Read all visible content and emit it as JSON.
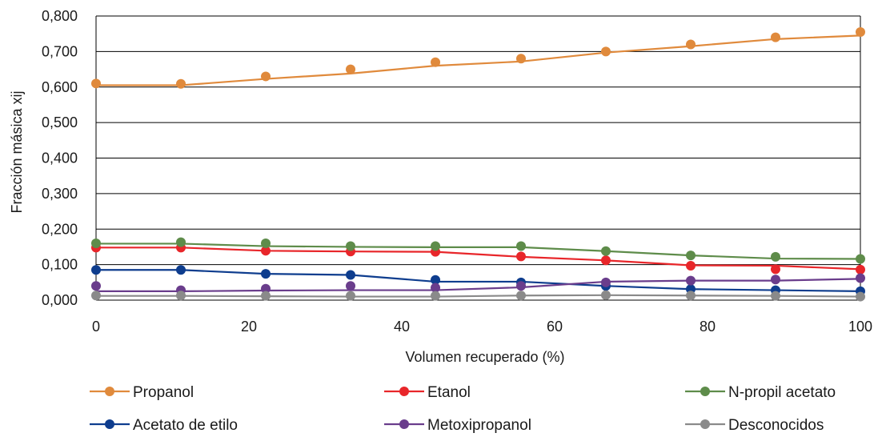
{
  "chart_data": {
    "type": "line",
    "title": "",
    "xlabel": "Volumen recuperado (%)",
    "ylabel": "Fracción másica xij",
    "xlim": [
      0,
      100
    ],
    "ylim": [
      0,
      0.8
    ],
    "grid": "horizontal",
    "legend_position": "bottom",
    "x_ticks": [
      {
        "value": 0,
        "label": "0"
      },
      {
        "value": 20,
        "label": "20"
      },
      {
        "value": 40,
        "label": "40"
      },
      {
        "value": 60,
        "label": "60"
      },
      {
        "value": 80,
        "label": "80"
      },
      {
        "value": 100,
        "label": "100"
      }
    ],
    "y_ticks": [
      {
        "value": 0,
        "label": "0,000"
      },
      {
        "value": 0.1,
        "label": "0,100"
      },
      {
        "value": 0.2,
        "label": "0,200"
      },
      {
        "value": 0.3,
        "label": "0,300"
      },
      {
        "value": 0.4,
        "label": "0,400"
      },
      {
        "value": 0.5,
        "label": "0,500"
      },
      {
        "value": 0.6,
        "label": "0,600"
      },
      {
        "value": 0.7,
        "label": "0,700"
      },
      {
        "value": 0.8,
        "label": "0,800"
      }
    ],
    "x": [
      0,
      11.1,
      22.2,
      33.3,
      44.4,
      55.6,
      66.7,
      77.8,
      88.9,
      100
    ],
    "series": [
      {
        "name": "Propanol",
        "color": "#e08a3c",
        "line_values": [
          0.605,
          0.605,
          0.623,
          0.638,
          0.66,
          0.672,
          0.697,
          0.715,
          0.735,
          0.745
        ],
        "values": [
          0.61,
          0.609,
          0.63,
          0.65,
          0.67,
          0.68,
          0.7,
          0.72,
          0.74,
          0.755
        ]
      },
      {
        "name": "Etanol",
        "color": "#e8262a",
        "line_values": [
          0.148,
          0.148,
          0.139,
          0.137,
          0.136,
          0.122,
          0.112,
          0.098,
          0.097,
          0.087
        ],
        "values": [
          0.148,
          0.148,
          0.139,
          0.137,
          0.136,
          0.123,
          0.112,
          0.097,
          0.087,
          0.086
        ]
      },
      {
        "name": "N-propil acetato",
        "color": "#5e8c4a",
        "line_values": [
          0.159,
          0.159,
          0.152,
          0.15,
          0.149,
          0.149,
          0.138,
          0.126,
          0.117,
          0.116
        ],
        "values": [
          0.16,
          0.163,
          0.16,
          0.152,
          0.152,
          0.152,
          0.138,
          0.126,
          0.122,
          0.116
        ]
      },
      {
        "name": "Acetato de etilo",
        "color": "#0e3d8e",
        "line_values": [
          0.085,
          0.085,
          0.074,
          0.071,
          0.052,
          0.052,
          0.04,
          0.031,
          0.028,
          0.025
        ],
        "values": [
          0.085,
          0.085,
          0.074,
          0.071,
          0.057,
          0.05,
          0.04,
          0.031,
          0.028,
          0.025
        ]
      },
      {
        "name": "Metoxipropanol",
        "color": "#6a3d8c",
        "line_values": [
          0.025,
          0.025,
          0.027,
          0.028,
          0.028,
          0.036,
          0.052,
          0.055,
          0.055,
          0.06
        ],
        "values": [
          0.04,
          0.028,
          0.032,
          0.04,
          0.035,
          0.04,
          0.05,
          0.055,
          0.058,
          0.062
        ]
      },
      {
        "name": "Desconocidos",
        "color": "#8a8a8a",
        "line_values": [
          0.012,
          0.012,
          0.011,
          0.01,
          0.01,
          0.013,
          0.014,
          0.013,
          0.012,
          0.01
        ],
        "values": [
          0.013,
          0.013,
          0.012,
          0.012,
          0.012,
          0.013,
          0.014,
          0.013,
          0.012,
          0.01
        ]
      }
    ]
  }
}
